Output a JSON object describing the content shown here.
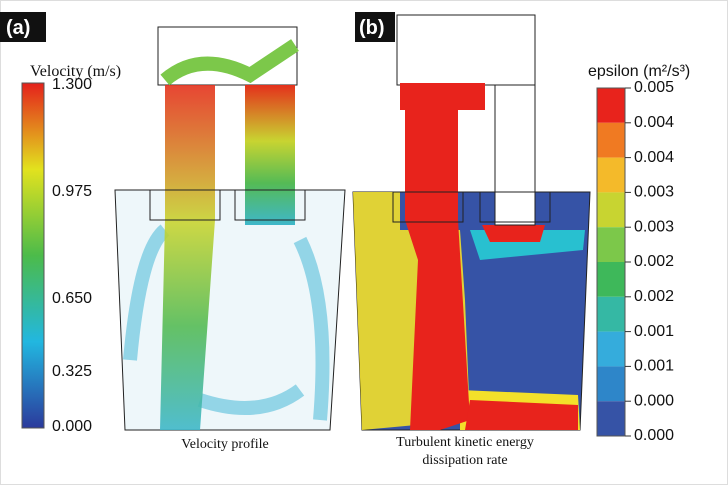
{
  "panels": [
    {
      "label": "(a)",
      "caption": "Velocity profile",
      "colorbar": {
        "title": "Velocity (m/s)",
        "ticks": [
          "1.300",
          "0.975",
          "0.650",
          "0.325",
          "0.000"
        ]
      }
    },
    {
      "label": "(b)",
      "caption": [
        "Turbulent kinetic energy",
        "dissipation rate"
      ],
      "colorbar": {
        "title": "epsilon (m²/s³)",
        "ticks": [
          "0.005",
          "0.004",
          "0.004",
          "0.003",
          "0.003",
          "0.002",
          "0.002",
          "0.001",
          "0.001",
          "0.000",
          "0.000"
        ]
      }
    }
  ]
}
